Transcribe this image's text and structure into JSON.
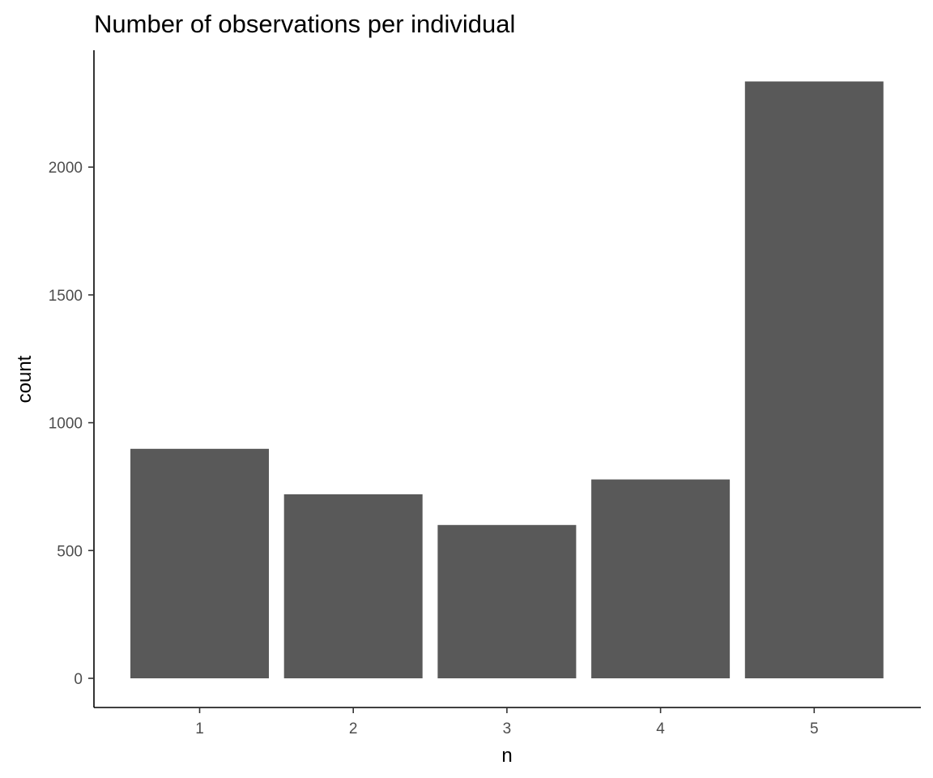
{
  "chart_data": {
    "type": "bar",
    "title": "Number of observations per individual",
    "xlabel": "n",
    "ylabel": "count",
    "categories": [
      "1",
      "2",
      "3",
      "4",
      "5"
    ],
    "values": [
      898,
      720,
      600,
      778,
      2335
    ],
    "ylim": [
      0,
      2360
    ],
    "yticks": [
      0,
      500,
      1000,
      1500,
      2000
    ],
    "grid": false,
    "legend": "none",
    "bar_color": "#595959"
  }
}
